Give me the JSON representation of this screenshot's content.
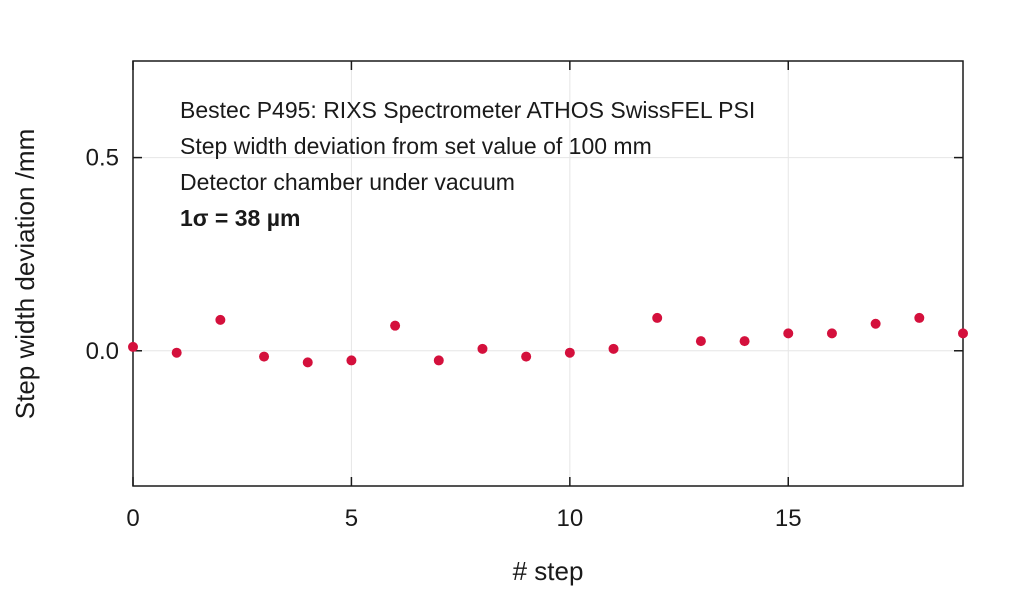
{
  "chart_data": {
    "type": "scatter",
    "xlabel": "# step",
    "ylabel": "Step width deviation /mm",
    "xlim": [
      0,
      19
    ],
    "ylim": [
      -0.35,
      0.75
    ],
    "xticks": [
      0,
      5,
      10,
      15
    ],
    "xtick_labels": [
      "0",
      "5",
      "10",
      "15"
    ],
    "yticks": [
      0.0,
      0.5
    ],
    "ytick_labels": [
      "0.0",
      "0.5"
    ],
    "grid": true,
    "marker_color": "#d4103c",
    "annotations": [
      "Bestec P495: RIXS Spectrometer ATHOS SwissFEL PSI",
      "Step width deviation from set value of 100 mm",
      "Detector chamber under vacuum",
      "1σ = 38 µm"
    ],
    "series": [
      {
        "x": [
          0,
          1,
          2,
          3,
          4,
          5,
          6,
          7,
          8,
          9,
          10,
          11,
          12,
          13,
          14,
          15,
          16,
          17,
          18,
          19
        ],
        "y": [
          0.01,
          -0.005,
          0.08,
          -0.015,
          -0.03,
          -0.025,
          0.065,
          -0.025,
          0.005,
          -0.015,
          -0.005,
          0.005,
          0.085,
          0.025,
          0.025,
          0.045,
          0.045,
          0.07,
          0.085,
          0.045
        ]
      }
    ]
  }
}
